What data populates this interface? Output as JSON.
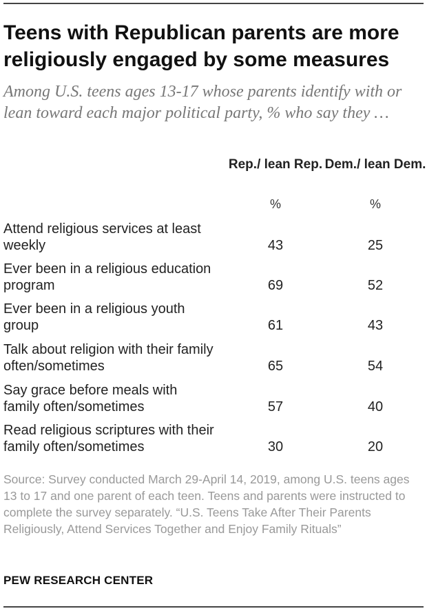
{
  "header": {
    "title": "Teens with Republican parents are more religiously engaged by some measures",
    "subtitle": "Among U.S. teens ages 13-17 whose parents identify with or lean toward each major political party, % who say they …"
  },
  "chart_data": {
    "type": "table",
    "columns": [
      {
        "name": "Rep./ lean Rep.",
        "unit": "%"
      },
      {
        "name": "Dem./ lean Dem.",
        "unit": "%"
      }
    ],
    "rows": [
      {
        "label": "Attend religious services at least weekly",
        "values": [
          "43",
          "25"
        ]
      },
      {
        "label": "Ever been in a religious education program",
        "values": [
          "69",
          "52"
        ]
      },
      {
        "label": "Ever been in a religious youth group",
        "values": [
          "61",
          "43"
        ]
      },
      {
        "label": "Talk about religion with their family often/sometimes",
        "values": [
          "65",
          "54"
        ]
      },
      {
        "label": "Say grace before meals with family often/sometimes",
        "values": [
          "57",
          "40"
        ]
      },
      {
        "label": "Read religious scriptures with their family often/sometimes",
        "values": [
          "30",
          "20"
        ]
      }
    ]
  },
  "footer": {
    "source": "Source: Survey conducted March 29-April 14, 2019, among U.S. teens ages 13 to 17 and one parent of each teen. Teens and parents were instructed to complete the survey separately. “U.S. Teens Take After Their Parents Religiously, Attend Services Together and Enjoy Family Rituals”",
    "brand": "PEW RESEARCH CENTER"
  }
}
